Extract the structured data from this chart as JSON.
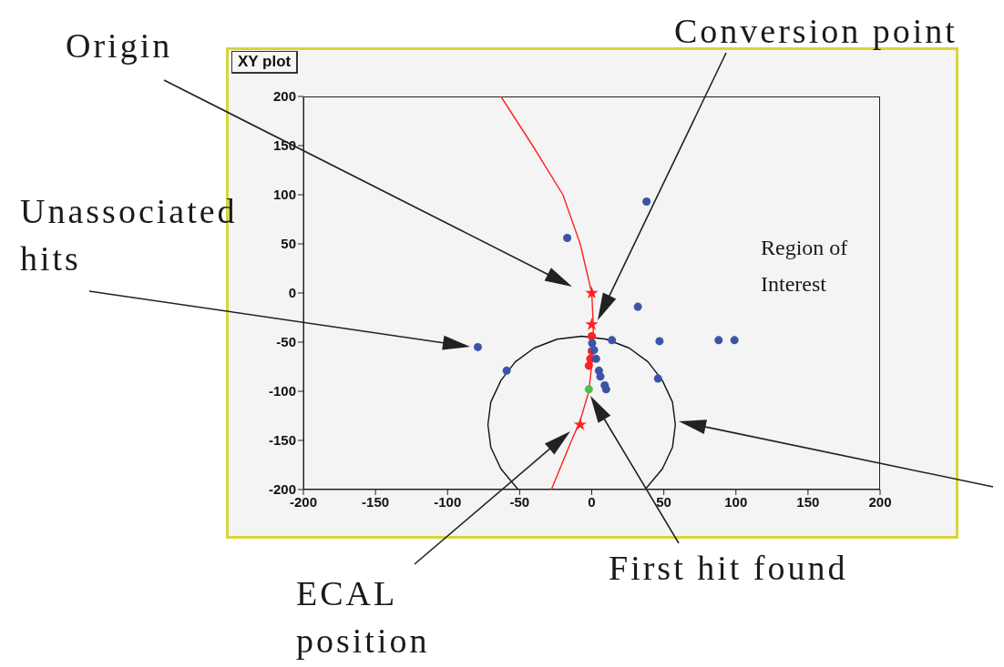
{
  "chart_data": {
    "type": "scatter",
    "title": "XY plot",
    "xlim": [
      -200,
      200
    ],
    "xticks": [
      -200,
      -150,
      -100,
      -50,
      0,
      50,
      100,
      150,
      200
    ],
    "ylim": [
      -200,
      200
    ],
    "yticks": [
      -200,
      -150,
      -100,
      -50,
      0,
      50,
      100,
      150,
      200
    ],
    "grid": false,
    "series": [
      {
        "type": "line",
        "color": "#ff2020",
        "marker": "none",
        "x": [
          -63,
          -41,
          -20,
          -8,
          0,
          1,
          1,
          -2,
          -8,
          -14,
          -28
        ],
        "values": [
          200,
          150,
          100,
          50,
          0,
          -30,
          -60,
          -100,
          -130,
          -150,
          -200
        ]
      },
      {
        "type": "line",
        "color": "#111111",
        "marker": "none",
        "x": [
          -51,
          -63,
          -70,
          -72,
          -70,
          -63,
          -53,
          -40,
          -24,
          -7,
          10,
          26,
          39,
          49,
          56,
          58,
          56,
          49,
          37
        ],
        "values": [
          -200,
          -179,
          -157,
          -134,
          -111,
          -89,
          -70,
          -56,
          -47,
          -44,
          -47,
          -56,
          -70,
          -89,
          -111,
          -134,
          -157,
          -179,
          -200
        ]
      },
      {
        "color": "#ff2020",
        "marker": "circle",
        "x": [
          0,
          0,
          -1,
          -2
        ],
        "values": [
          -44,
          -59,
          -67,
          -74
        ]
      },
      {
        "color": "#3a55a8",
        "marker": "circle",
        "x": [
          -17,
          38,
          -79,
          -59,
          32,
          14,
          47,
          88,
          99,
          46,
          0.3,
          1.6,
          3,
          5,
          6,
          9,
          10
        ],
        "values": [
          56,
          93,
          -55,
          -79,
          -14,
          -48,
          -49,
          -48,
          -48,
          -87,
          -51,
          -58,
          -67,
          -79,
          -85,
          -94,
          -98
        ]
      },
      {
        "color": "#ff2020",
        "marker": "star",
        "x": [
          0,
          0,
          -8
        ],
        "values": [
          0,
          -32,
          -134
        ]
      },
      {
        "color": "#50c040",
        "marker": "circle",
        "x": [
          -2
        ],
        "values": [
          -98
        ]
      }
    ],
    "annotations": [
      "Origin",
      "Conversion point",
      "Unassociated hits",
      "First hit found",
      "ECAL position",
      "Region of Interest"
    ]
  }
}
